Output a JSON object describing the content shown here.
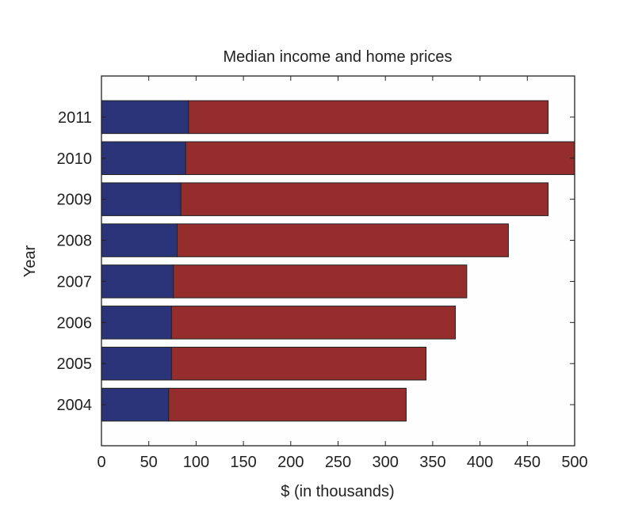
{
  "chart_data": {
    "type": "bar",
    "orientation": "horizontal",
    "stacked": true,
    "title": "Median income and home prices",
    "xlabel": "$ (in thousands)",
    "ylabel": "Year",
    "categories": [
      "2004",
      "2005",
      "2006",
      "2007",
      "2008",
      "2009",
      "2010",
      "2011"
    ],
    "series": [
      {
        "values": [
          71,
          74,
          74,
          76,
          80,
          84,
          89,
          92
        ],
        "color": "#2b3479"
      },
      {
        "values": [
          251,
          269,
          300,
          310,
          350,
          388,
          411,
          380
        ],
        "color": "#962d2d"
      }
    ],
    "xlim": [
      0,
      500
    ],
    "ylim": [
      2003,
      2012
    ],
    "xticks": [
      "0",
      "50",
      "100",
      "150",
      "200",
      "250",
      "300",
      "350",
      "400",
      "450",
      "500"
    ],
    "grid": false,
    "legend": "none"
  }
}
